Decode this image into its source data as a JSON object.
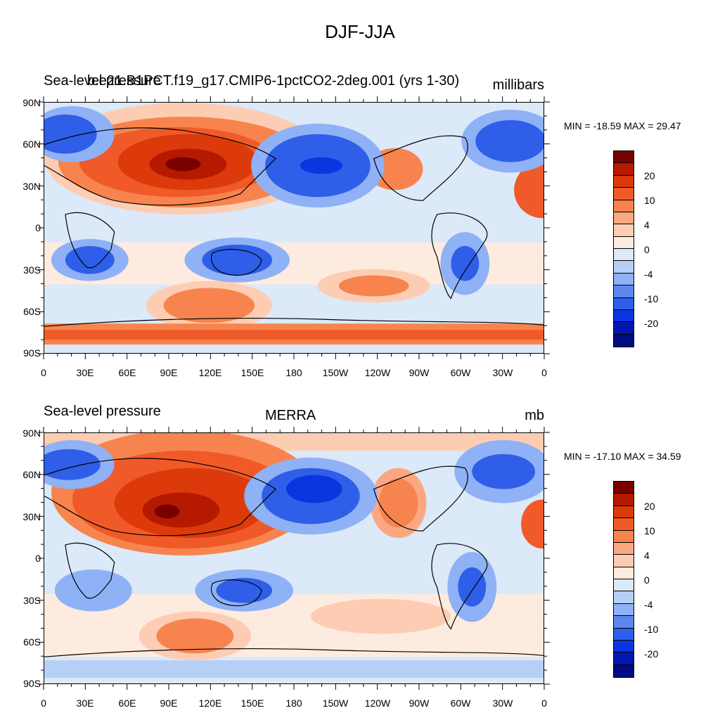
{
  "title": "DJF-JJA",
  "panels": [
    {
      "left_label": "Sea-level pressure",
      "center_label": "b.e21.B1PCT.f19_g17.CMIP6-1pctCO2-2deg.001 (yrs 1-30)",
      "units": "millibars",
      "min_max": "MIN = -18.59 MAX =  29.47"
    },
    {
      "left_label": "Sea-level pressure",
      "center_label": "MERRA",
      "units": "mb",
      "min_max": "MIN = -17.10 MAX =  34.59"
    }
  ],
  "lat_ticks": [
    "90N",
    "60N",
    "30N",
    "0",
    "30S",
    "60S",
    "90S"
  ],
  "lon_ticks": [
    "0",
    "30E",
    "60E",
    "90E",
    "120E",
    "150E",
    "180",
    "150W",
    "120W",
    "90W",
    "60W",
    "30W",
    "0"
  ],
  "colorbar": {
    "colors": [
      "#7a0000",
      "#b51a00",
      "#dc3a0a",
      "#f05a28",
      "#f7844e",
      "#fba882",
      "#fdcdb3",
      "#fdebe0",
      "#dbe9f8",
      "#b6cff5",
      "#8fb1f5",
      "#5d87ef",
      "#2f5ee8",
      "#0a36e0",
      "#0018b0",
      "#000c80"
    ],
    "labels": [
      "20",
      "10",
      "4",
      "0",
      "-4",
      "-10",
      "-20"
    ]
  },
  "colors": {
    "neutral_pos": "#fdebe0",
    "neutral_neg": "#dbe9f8",
    "coastline": "#000000"
  }
}
